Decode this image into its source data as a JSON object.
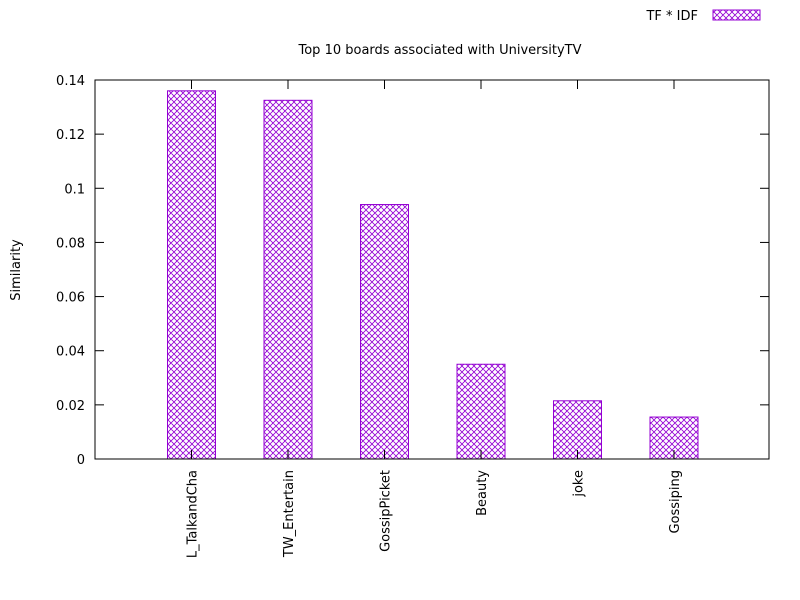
{
  "chart_data": {
    "type": "bar",
    "title": "Top 10 boards associated with UniversityTV",
    "xlabel": "",
    "ylabel": "Similarity",
    "ylim": [
      0,
      0.14
    ],
    "yticks": [
      "0",
      "0.02",
      "0.04",
      "0.06",
      "0.08",
      "0.1",
      "0.12",
      "0.14"
    ],
    "categories": [
      "L_TalkandCha",
      "TW_Entertain",
      "GossipPicket",
      "Beauty",
      "joke",
      "Gossiping"
    ],
    "series": [
      {
        "name": "TF * IDF",
        "values": [
          0.136,
          0.1325,
          0.094,
          0.035,
          0.0215,
          0.0155
        ]
      }
    ],
    "legend_position": "top-right",
    "grid": false,
    "bar_color": "#9400d3",
    "bar_pattern": "crosshatch"
  }
}
